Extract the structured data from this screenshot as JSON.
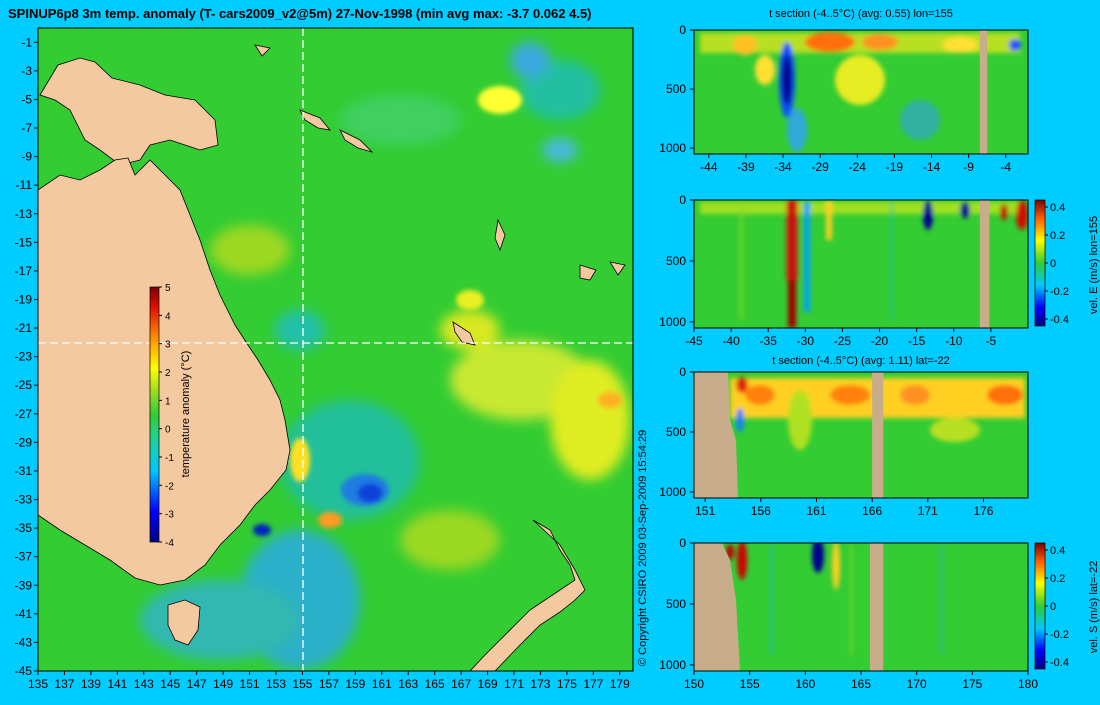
{
  "colors": {
    "background": "#00ccff",
    "land": "#f5c9a0",
    "land_section": "#c8ad8a",
    "ocean_base": "#33cc33",
    "crosshair": "#ffffff"
  },
  "main": {
    "title": "SPINUP6p8 3m temp. anomaly (T- cars2009_v2@5m) 27-Nov-1998 (min avg max: -3.7 0.062 4.5)",
    "copyright": "© Copyright CSIRO 2009   03-Sep-2009 15:54:29",
    "colorbar_label": "temperature anomaly (°C)"
  },
  "chart_data": [
    {
      "type": "heatmap",
      "name": "map",
      "title": "SPINUP6p8 3m temp. anomaly (T- cars2009_v2@5m) 27-Nov-1998 (min avg max: -3.7 0.062 4.5)",
      "xlabel": "",
      "ylabel": "",
      "xlim": [
        135,
        180
      ],
      "ylim": [
        -45,
        0
      ],
      "x_ticks": [
        135,
        137,
        139,
        141,
        143,
        145,
        147,
        149,
        151,
        153,
        155,
        157,
        159,
        161,
        163,
        165,
        167,
        169,
        171,
        173,
        175,
        177,
        179
      ],
      "y_ticks": [
        -1,
        -3,
        -5,
        -7,
        -9,
        -11,
        -13,
        -15,
        -17,
        -19,
        -21,
        -23,
        -25,
        -27,
        -29,
        -31,
        -33,
        -35,
        -37,
        -39,
        -41,
        -43,
        -45
      ],
      "stats": {
        "min": -3.7,
        "avg": 0.062,
        "max": 4.5
      },
      "crosshair": {
        "lon": 155,
        "lat": -22
      },
      "colorbar": {
        "label": "temperature anomaly (°C)",
        "range": [
          -4,
          5
        ],
        "ticks": [
          5,
          4,
          3,
          2,
          1,
          0,
          -1,
          -2,
          -3,
          -4
        ]
      }
    },
    {
      "type": "heatmap",
      "name": "t-section-lon",
      "title": "t section (-4..5°C) (avg: 0.55) lon=155",
      "xlim": [
        -46,
        -1
      ],
      "ylim": [
        1050,
        0
      ],
      "x_ticks": [
        -44,
        -39,
        -34,
        -29,
        -24,
        -19,
        -14,
        -9,
        -4
      ],
      "y_ticks": [
        0,
        500,
        1000
      ],
      "land_columns": [
        [
          -7.5,
          -6.5
        ]
      ]
    },
    {
      "type": "heatmap",
      "name": "vel-e-section",
      "title": "",
      "xlim": [
        -45,
        0
      ],
      "ylim": [
        1050,
        0
      ],
      "x_ticks": [
        -45,
        -40,
        -35,
        -30,
        -25,
        -20,
        -15,
        -10,
        -5
      ],
      "y_ticks": [
        0,
        500,
        1000
      ],
      "colorbar": {
        "label": "vel. E (m/s) lon=155",
        "range": [
          -0.45,
          0.45
        ],
        "ticks": [
          "0.4",
          "0.2",
          "0",
          "-0.2",
          "-0.4"
        ]
      },
      "land_columns": [
        [
          -6.5,
          -5.2
        ]
      ]
    },
    {
      "type": "heatmap",
      "name": "t-section-lat",
      "title": "t section (-4..5°C) (avg: 1.11) lat=-22",
      "xlim": [
        150,
        180
      ],
      "ylim": [
        1050,
        0
      ],
      "x_ticks": [
        151,
        156,
        161,
        166,
        171,
        176
      ],
      "y_ticks": [
        0,
        500,
        1000
      ],
      "land_columns": [
        [
          166.0,
          167.0
        ]
      ]
    },
    {
      "type": "heatmap",
      "name": "vel-s-section",
      "title": "",
      "xlim": [
        150,
        180
      ],
      "ylim": [
        1050,
        0
      ],
      "x_ticks": [
        150,
        155,
        160,
        165,
        170,
        175,
        180
      ],
      "y_ticks": [
        0,
        500,
        1000
      ],
      "colorbar": {
        "label": "vel. S (m/s) lat=-22",
        "range": [
          -0.45,
          0.45
        ],
        "ticks": [
          "0.4",
          "0.2",
          "0",
          "-0.2",
          "-0.4"
        ]
      },
      "land_columns": [
        [
          165.8,
          167.0
        ]
      ]
    }
  ]
}
